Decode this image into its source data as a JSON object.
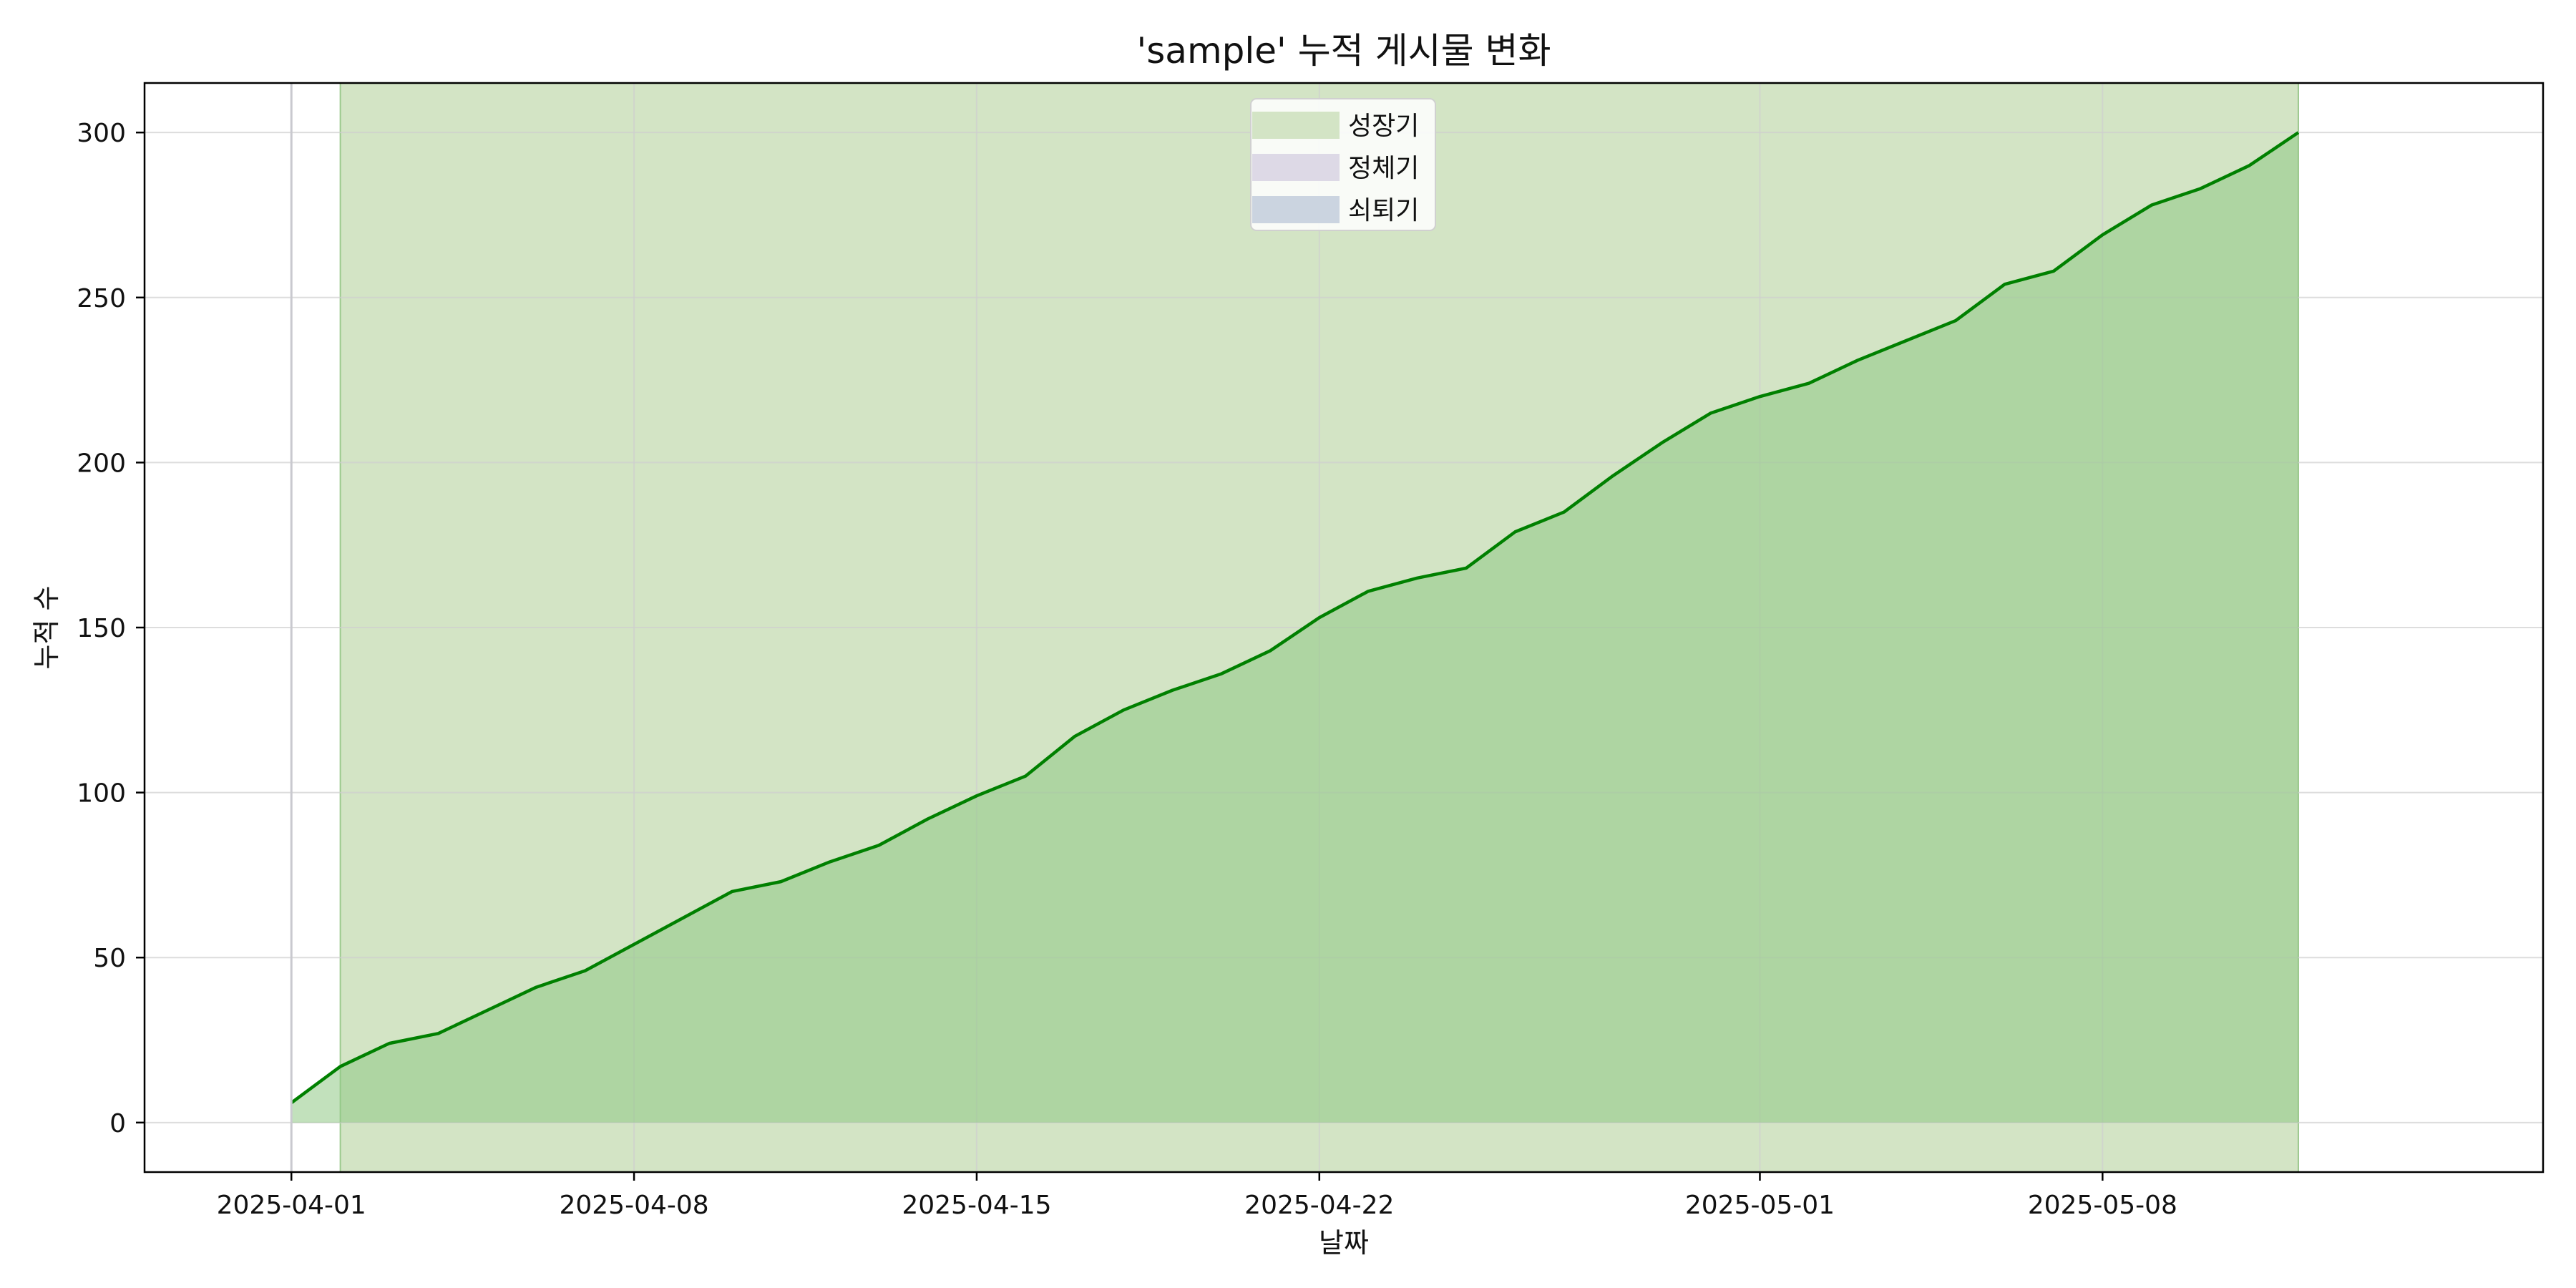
{
  "chart_data": {
    "type": "area",
    "title": "'sample' 누적 게시물 변화",
    "xlabel": "날짜",
    "ylabel": "누적 수",
    "xlim": [
      "2025-03-29",
      "2025-05-17"
    ],
    "ylim": [
      -15,
      315
    ],
    "x_ticks": [
      "2025-04-01",
      "2025-04-08",
      "2025-04-15",
      "2025-04-22",
      "2025-05-01",
      "2025-05-08"
    ],
    "y_ticks": [
      0,
      50,
      100,
      150,
      200,
      250,
      300
    ],
    "grid": true,
    "legend_position": "top-center",
    "colors": {
      "line": "#008000",
      "area_fill": "#90c985",
      "growth_band": "#d3e4c5",
      "stagnation_band": "#ddd9e6",
      "decline_band": "#cbd4e0"
    },
    "phases": [
      {
        "name": "성장기",
        "start": "2025-04-02",
        "end": "2025-05-12"
      },
      {
        "name": "정체기",
        "start": null,
        "end": null
      },
      {
        "name": "쇠퇴기",
        "start": null,
        "end": null
      }
    ],
    "series": [
      {
        "x": [
          "2025-04-01",
          "2025-04-02",
          "2025-04-03",
          "2025-04-04",
          "2025-04-05",
          "2025-04-06",
          "2025-04-07",
          "2025-04-08",
          "2025-04-09",
          "2025-04-10",
          "2025-04-11",
          "2025-04-12",
          "2025-04-13",
          "2025-04-14",
          "2025-04-15",
          "2025-04-16",
          "2025-04-17",
          "2025-04-18",
          "2025-04-19",
          "2025-04-20",
          "2025-04-21",
          "2025-04-22",
          "2025-04-23",
          "2025-04-24",
          "2025-04-25",
          "2025-04-26",
          "2025-04-27",
          "2025-04-28",
          "2025-04-29",
          "2025-04-30",
          "2025-05-01",
          "2025-05-02",
          "2025-05-03",
          "2025-05-04",
          "2025-05-05",
          "2025-05-06",
          "2025-05-07",
          "2025-05-08",
          "2025-05-09",
          "2025-05-10",
          "2025-05-11",
          "2025-05-12"
        ],
        "y": [
          6,
          17,
          24,
          27,
          34,
          41,
          46,
          54,
          62,
          70,
          73,
          79,
          84,
          92,
          99,
          105,
          117,
          125,
          131,
          136,
          143,
          153,
          161,
          165,
          168,
          179,
          185,
          196,
          206,
          215,
          220,
          224,
          231,
          237,
          243,
          254,
          258,
          269,
          278,
          283,
          290,
          300
        ]
      }
    ]
  }
}
